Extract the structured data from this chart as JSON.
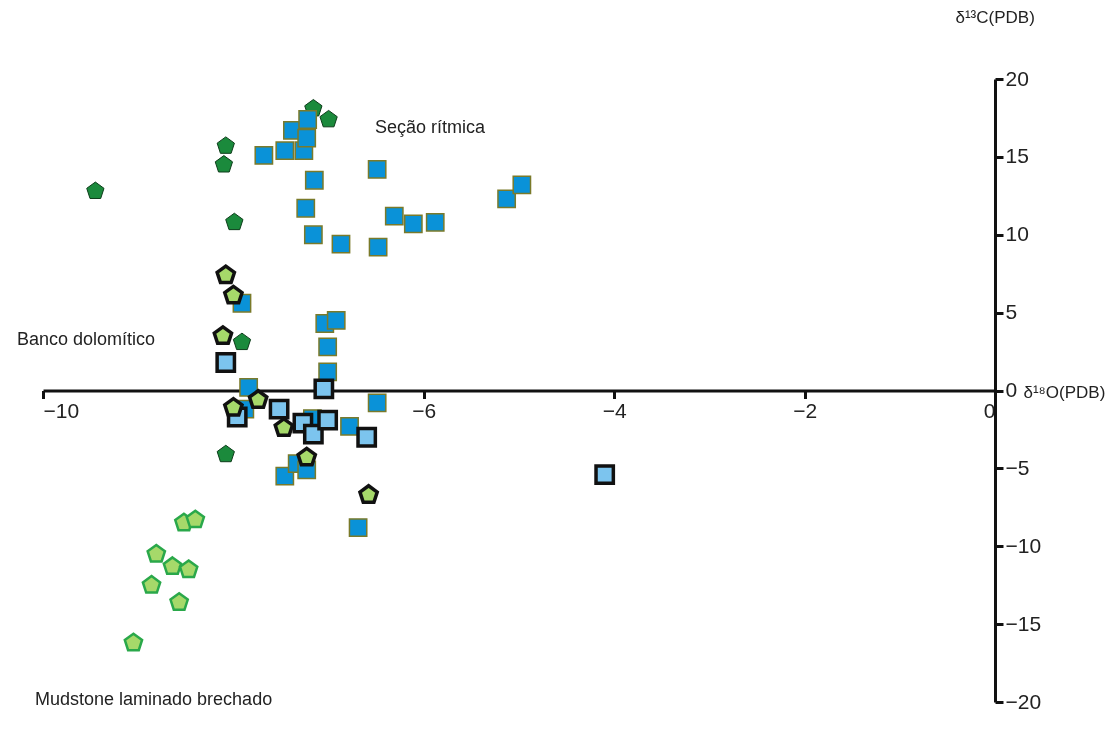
{
  "chart_data": {
    "type": "scatter",
    "xlabel": "δ¹⁸O(PDB)",
    "ylabel": "δ¹³C(PDB)",
    "xlim": [
      -10,
      0
    ],
    "xticks": [
      -10,
      -6,
      -4,
      -2,
      0
    ],
    "ylim": [
      -20,
      20
    ],
    "yticks": [
      -20,
      -15,
      -10,
      -5,
      0,
      5,
      10,
      15,
      20
    ],
    "annotations": [
      "Seção rítmica",
      "Banco dolomítico",
      "Mudstone laminado brechado"
    ],
    "series": [
      {
        "color": "#1b8a3c",
        "x": [
          -9.45,
          -8.08,
          -8.1,
          -7.99,
          -7.16,
          -7.0,
          -7.91,
          -8.08
        ],
        "values": [
          12.8,
          15.7,
          14.5,
          10.8,
          18.1,
          17.4,
          3.1,
          -4.1
        ]
      },
      {
        "color": "#0a92d8",
        "marker": "square",
        "x": [
          -7.68,
          -7.46,
          -7.26,
          -7.38,
          -7.23,
          -7.22,
          -7.15,
          -7.24,
          -7.16,
          -6.87,
          -6.49,
          -6.48,
          -6.31,
          -6.11,
          -5.88,
          -5.13,
          -4.97,
          -7.91,
          -7.04,
          -6.92,
          -7.01,
          -7.01,
          -7.84,
          -7.88,
          -7.17,
          -6.78,
          -6.49,
          -7.46,
          -7.33,
          -7.23,
          -6.69
        ],
        "values": [
          15.1,
          15.4,
          15.4,
          16.7,
          16.2,
          17.4,
          13.5,
          11.7,
          10.0,
          9.4,
          14.2,
          9.2,
          11.2,
          10.7,
          10.8,
          12.3,
          13.2,
          5.6,
          4.3,
          4.5,
          2.8,
          1.2,
          0.2,
          -1.2,
          -1.8,
          -2.3,
          -0.8,
          -5.5,
          -4.7,
          -5.1,
          -8.8
        ]
      },
      {
        "color": "#7cc4ee",
        "marker": "square",
        "x": [
          -8.08,
          -7.05,
          -7.96,
          -7.52,
          -7.27,
          -7.16,
          -7.01,
          -6.6,
          -4.1
        ],
        "values": [
          1.8,
          0.1,
          -1.7,
          -1.2,
          -2.1,
          -2.8,
          -1.9,
          -3.0,
          -5.4
        ]
      },
      {
        "color": "#a6d96a",
        "x": [
          -8.08,
          -8.0,
          -8.11,
          -8.0,
          -7.74,
          -7.47,
          -7.23,
          -6.58
        ],
        "values": [
          7.4,
          6.1,
          3.5,
          -1.1,
          -0.6,
          -2.4,
          -4.3,
          -6.7
        ]
      },
      {
        "color": "#a6d96a",
        "x": [
          -8.52,
          -8.4,
          -8.81,
          -8.64,
          -8.47,
          -8.86,
          -8.57,
          -9.05
        ],
        "values": [
          -8.5,
          -8.3,
          -10.5,
          -11.3,
          -11.5,
          -12.5,
          -13.6,
          -16.2
        ]
      }
    ]
  }
}
